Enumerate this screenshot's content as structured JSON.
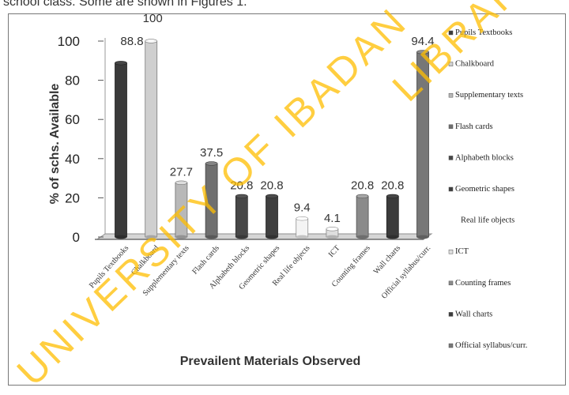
{
  "header": {
    "caption": "school class. Some are shown in Figures 1."
  },
  "watermark": {
    "line1": "UNIVERSITY OF IBADAN",
    "line2": "LIBRARY"
  },
  "colors": {
    "frame": "#777777",
    "dark": "#3a3a3a",
    "light": "#cfcfcf",
    "mid": "#8a8a8a",
    "wm": "#ffbf00"
  },
  "chart_data": {
    "type": "bar",
    "title": "",
    "xlabel": "Prevailent Materials Observed",
    "ylabel": "% of schs. Available",
    "ylim": [
      0,
      100
    ],
    "yticks": [
      "0",
      "20",
      "40",
      "60",
      "80",
      "100"
    ],
    "grid": false,
    "legend_position": "right",
    "categories": [
      "Pupils Textbooks",
      "Chalkboard",
      "Supplementary texts",
      "Flash cards",
      "Alphabeth blocks",
      "Geometric shapes",
      "Real life objects",
      "ICT",
      "Counting frames",
      "Wall charts",
      "Official syllabus/curr."
    ],
    "values": [
      88.8,
      100,
      27.7,
      37.5,
      20.8,
      20.8,
      9.4,
      4.1,
      20.8,
      20.8,
      94.4
    ],
    "value_labels": [
      "88.8",
      "100",
      "27.7",
      "37.5",
      "20.8",
      "20.8",
      "9.4",
      "4.1",
      "20.8",
      "20.8",
      "94.4"
    ],
    "bar_colors": [
      "#3a3a3a",
      "#cfcfcf",
      "#b8b8b8",
      "#6f6f6f",
      "#474747",
      "#3f3f3f",
      "#f4f4f4",
      "#dedede",
      "#8a8a8a",
      "#3b3b3b",
      "#777777"
    ],
    "legend": [
      "Pupils Textbooks",
      "Chalkboard",
      "Supplementary texts",
      "Flash cards",
      "Alphabeth blocks",
      "Geometric shapes",
      "Real life objects",
      "ICT",
      "Counting frames",
      "Wall charts",
      "Official syllabus/curr."
    ],
    "legend_markers": [
      true,
      true,
      true,
      true,
      true,
      true,
      false,
      true,
      true,
      true,
      true
    ]
  }
}
